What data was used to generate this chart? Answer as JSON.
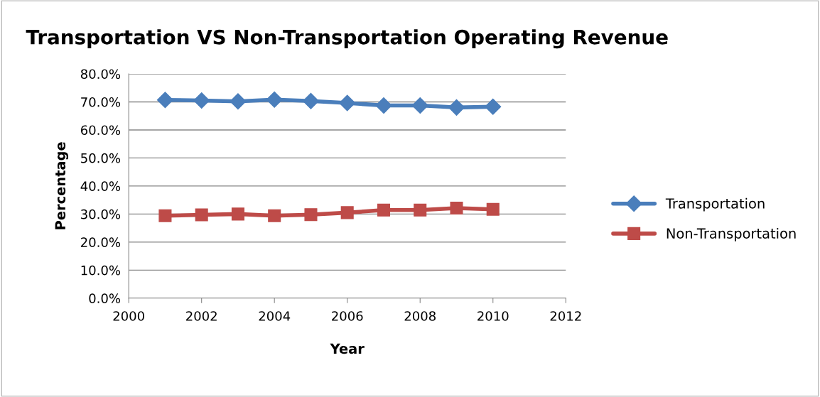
{
  "chart_data": {
    "type": "line",
    "title": "Transportation VS Non-Transportation Operating Revenue",
    "xlabel": "Year",
    "ylabel": "Percentage",
    "x": [
      2001,
      2002,
      2003,
      2004,
      2005,
      2006,
      2007,
      2008,
      2009,
      2010
    ],
    "series": [
      {
        "name": "Transportation",
        "color": "#4a7ebb",
        "marker": "diamond",
        "values": [
          70.7,
          70.5,
          70.2,
          70.8,
          70.3,
          69.6,
          68.7,
          68.7,
          68.0,
          68.3
        ]
      },
      {
        "name": "Non-Transportation",
        "color": "#be4b48",
        "marker": "square",
        "values": [
          29.4,
          29.7,
          30.0,
          29.4,
          29.8,
          30.5,
          31.4,
          31.4,
          32.1,
          31.7
        ]
      }
    ],
    "xlim": [
      2000,
      2012
    ],
    "xticks": [
      2000,
      2002,
      2004,
      2006,
      2008,
      2010,
      2012
    ],
    "ylim": [
      0,
      80
    ],
    "yticks": [
      {
        "value": 0,
        "label": "0.0%"
      },
      {
        "value": 10,
        "label": "10.0%"
      },
      {
        "value": 20,
        "label": "20.0%"
      },
      {
        "value": 30,
        "label": "30.0%"
      },
      {
        "value": 40,
        "label": "40.0%"
      },
      {
        "value": 50,
        "label": "50.0%"
      },
      {
        "value": 60,
        "label": "60.0%"
      },
      {
        "value": 70,
        "label": "70.0%"
      },
      {
        "value": 80,
        "label": "80.0%"
      }
    ],
    "grid": "y",
    "legend": "right",
    "line_style": "solid"
  }
}
